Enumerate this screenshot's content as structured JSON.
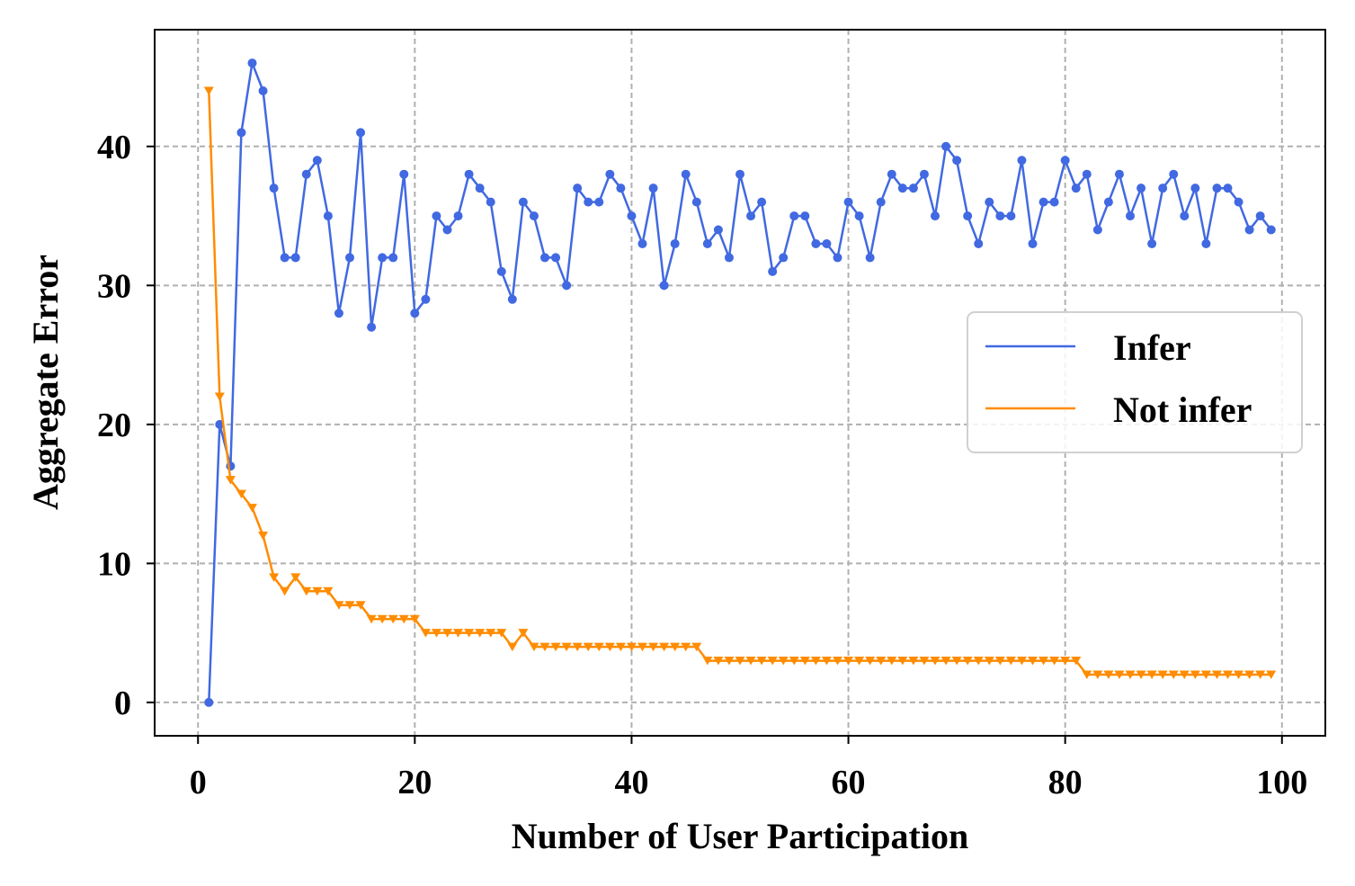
{
  "chart_data": {
    "type": "line",
    "title": "",
    "xlabel": "Number of User Participation",
    "ylabel": "Aggregate Error",
    "xlim": [
      -4,
      104
    ],
    "ylim": [
      -2.4,
      48.4
    ],
    "xticks": [
      0,
      20,
      40,
      60,
      80,
      100
    ],
    "yticks": [
      0,
      10,
      20,
      30,
      40
    ],
    "grid": true,
    "legend_position": "center-right",
    "x": [
      1,
      2,
      3,
      4,
      5,
      6,
      7,
      8,
      9,
      10,
      11,
      12,
      13,
      14,
      15,
      16,
      17,
      18,
      19,
      20,
      21,
      22,
      23,
      24,
      25,
      26,
      27,
      28,
      29,
      30,
      31,
      32,
      33,
      34,
      35,
      36,
      37,
      38,
      39,
      40,
      41,
      42,
      43,
      44,
      45,
      46,
      47,
      48,
      49,
      50,
      51,
      52,
      53,
      54,
      55,
      56,
      57,
      58,
      59,
      60,
      61,
      62,
      63,
      64,
      65,
      66,
      67,
      68,
      69,
      70,
      71,
      72,
      73,
      74,
      75,
      76,
      77,
      78,
      79,
      80,
      81,
      82,
      83,
      84,
      85,
      86,
      87,
      88,
      89,
      90,
      91,
      92,
      93,
      94,
      95,
      96,
      97,
      98,
      99
    ],
    "series": [
      {
        "name": "Infer",
        "color": "#4169E1",
        "marker": "circle",
        "values": [
          0,
          20,
          17,
          41,
          46,
          44,
          37,
          32,
          32,
          38,
          39,
          35,
          28,
          32,
          41,
          27,
          32,
          32,
          38,
          28,
          29,
          35,
          34,
          35,
          38,
          37,
          36,
          31,
          29,
          36,
          35,
          32,
          32,
          30,
          37,
          36,
          36,
          38,
          37,
          35,
          33,
          37,
          30,
          33,
          38,
          36,
          33,
          34,
          32,
          38,
          35,
          36,
          31,
          32,
          35,
          35,
          33,
          33,
          32,
          36,
          35,
          32,
          36,
          38,
          37,
          37,
          38,
          35,
          40,
          39,
          35,
          33,
          36,
          35,
          35,
          39,
          33,
          36,
          36,
          39,
          37,
          38,
          34,
          36,
          38,
          35,
          37,
          33,
          37,
          38,
          35,
          37,
          33,
          37,
          37,
          36,
          34,
          35,
          34
        ]
      },
      {
        "name": "Not infer",
        "color": "#FF8C00",
        "marker": "triangle-down",
        "values": [
          44,
          22,
          16,
          15,
          14,
          12,
          9,
          8,
          9,
          8,
          8,
          8,
          7,
          7,
          7,
          6,
          6,
          6,
          6,
          6,
          5,
          5,
          5,
          5,
          5,
          5,
          5,
          5,
          4,
          5,
          4,
          4,
          4,
          4,
          4,
          4,
          4,
          4,
          4,
          4,
          4,
          4,
          4,
          4,
          4,
          4,
          3,
          3,
          3,
          3,
          3,
          3,
          3,
          3,
          3,
          3,
          3,
          3,
          3,
          3,
          3,
          3,
          3,
          3,
          3,
          3,
          3,
          3,
          3,
          3,
          3,
          3,
          3,
          3,
          3,
          3,
          3,
          3,
          3,
          3,
          3,
          2,
          2,
          2,
          2,
          2,
          2,
          2,
          2,
          2,
          2,
          2,
          2,
          2,
          2,
          2,
          2,
          2,
          2
        ]
      }
    ]
  }
}
